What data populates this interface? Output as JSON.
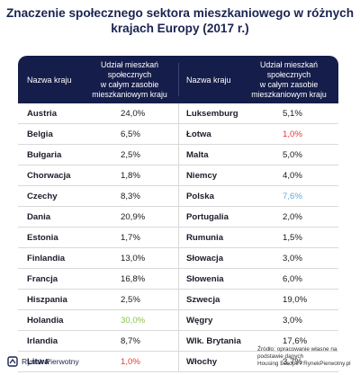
{
  "title_line1": "Znaczenie społecznego sektora mieszkaniowego w różnych",
  "title_line2": "krajach Europy (2017 r.)",
  "headers": {
    "name": "Nazwa kraju",
    "share_line1": "Udział mieszkań",
    "share_line2": "społecznych",
    "share_line3": "w całym zasobie",
    "share_line4": "mieszkaniowym kraju"
  },
  "colors": {
    "header_bg": "#151d4a",
    "title": "#1b2452",
    "highlight_red": "#e53935",
    "highlight_green": "#8bc34a",
    "highlight_blue": "#64a8e0",
    "default_value": "#1a1a1a"
  },
  "chart_data": {
    "type": "table",
    "title": "Znaczenie społecznego sektora mieszkaniowego w różnych krajach Europy (2017 r.)",
    "columns": [
      "Nazwa kraju",
      "Udział mieszkań społecznych w całym zasobie mieszkaniowym kraju"
    ],
    "left": [
      {
        "name": "Austria",
        "value": "24,0%",
        "color": "default"
      },
      {
        "name": "Belgia",
        "value": "6,5%",
        "color": "default"
      },
      {
        "name": "Bułgaria",
        "value": "2,5%",
        "color": "default"
      },
      {
        "name": "Chorwacja",
        "value": "1,8%",
        "color": "default"
      },
      {
        "name": "Czechy",
        "value": "8,3%",
        "color": "default"
      },
      {
        "name": "Dania",
        "value": "20,9%",
        "color": "default"
      },
      {
        "name": "Estonia",
        "value": "1,7%",
        "color": "default"
      },
      {
        "name": "Finlandia",
        "value": "13,0%",
        "color": "default"
      },
      {
        "name": "Francja",
        "value": "16,8%",
        "color": "default"
      },
      {
        "name": "Hiszpania",
        "value": "2,5%",
        "color": "default"
      },
      {
        "name": "Holandia",
        "value": "30,0%",
        "color": "green"
      },
      {
        "name": "Irlandia",
        "value": "8,7%",
        "color": "default"
      },
      {
        "name": "Litwa",
        "value": "1,0%",
        "color": "red"
      }
    ],
    "right": [
      {
        "name": "Luksemburg",
        "value": "5,1%",
        "color": "default"
      },
      {
        "name": "Łotwa",
        "value": "1,0%",
        "color": "red"
      },
      {
        "name": "Malta",
        "value": "5,0%",
        "color": "default"
      },
      {
        "name": "Niemcy",
        "value": "4,0%",
        "color": "default"
      },
      {
        "name": "Polska",
        "value": "7,6%",
        "color": "blue"
      },
      {
        "name": "Portugalia",
        "value": "2,0%",
        "color": "default"
      },
      {
        "name": "Rumunia",
        "value": "1,5%",
        "color": "default"
      },
      {
        "name": "Słowacja",
        "value": "3,0%",
        "color": "default"
      },
      {
        "name": "Słowenia",
        "value": "6,0%",
        "color": "default"
      },
      {
        "name": "Szwecja",
        "value": "19,0%",
        "color": "default"
      },
      {
        "name": "Węgry",
        "value": "3,0%",
        "color": "default"
      },
      {
        "name": "Wlk. Brytania",
        "value": "17,6%",
        "color": "default"
      },
      {
        "name": "Włochy",
        "value": "3,7%",
        "color": "default"
      }
    ]
  },
  "footer": {
    "logo_text": "Rynek Pierwotny",
    "source_line1": "Źródło: opracowanie własne na podstawie danych",
    "source_line2": "Housing Europe / RynekPierwotny.pl"
  }
}
